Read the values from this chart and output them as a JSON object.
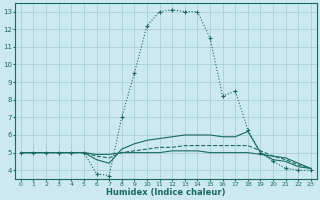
{
  "xlabel": "Humidex (Indice chaleur)",
  "xlim": [
    -0.5,
    23.5
  ],
  "ylim": [
    3.5,
    13.5
  ],
  "yticks": [
    4,
    5,
    6,
    7,
    8,
    9,
    10,
    11,
    12,
    13
  ],
  "xticks": [
    0,
    1,
    2,
    3,
    4,
    5,
    6,
    7,
    8,
    9,
    10,
    11,
    12,
    13,
    14,
    15,
    16,
    17,
    18,
    19,
    20,
    21,
    22,
    23
  ],
  "bg_color": "#cce8f0",
  "grid_color": "#aacfd8",
  "line_color": "#1a6b5e",
  "series": [
    {
      "x": [
        0,
        1,
        2,
        3,
        4,
        5,
        6,
        7,
        8,
        9,
        10,
        11,
        12,
        13,
        14,
        15,
        16,
        17,
        18,
        19,
        20,
        21,
        22,
        23
      ],
      "y": [
        5,
        5,
        5,
        5,
        5,
        5,
        3.8,
        3.7,
        7.0,
        9.5,
        12.2,
        13.0,
        13.1,
        13.0,
        13.0,
        11.5,
        8.2,
        8.5,
        6.3,
        5.0,
        4.5,
        4.1,
        4.0,
        4.0
      ],
      "style": ":",
      "marker": "+"
    },
    {
      "x": [
        0,
        1,
        2,
        3,
        4,
        5,
        6,
        7,
        8,
        9,
        10,
        11,
        12,
        13,
        14,
        15,
        16,
        17,
        18,
        19,
        20,
        21,
        22,
        23
      ],
      "y": [
        5,
        5,
        5,
        5,
        5,
        5,
        4.6,
        4.4,
        5.2,
        5.5,
        5.7,
        5.8,
        5.9,
        6.0,
        6.0,
        6.0,
        5.9,
        5.9,
        6.2,
        5.0,
        4.6,
        4.5,
        4.2,
        4.1
      ],
      "style": "-",
      "marker": null
    },
    {
      "x": [
        0,
        1,
        2,
        3,
        4,
        5,
        6,
        7,
        8,
        9,
        10,
        11,
        12,
        13,
        14,
        15,
        16,
        17,
        18,
        19,
        20,
        21,
        22,
        23
      ],
      "y": [
        5,
        5,
        5,
        5,
        5,
        5,
        4.8,
        4.7,
        5.0,
        5.1,
        5.2,
        5.3,
        5.3,
        5.4,
        5.4,
        5.4,
        5.4,
        5.4,
        5.4,
        5.1,
        4.8,
        4.6,
        4.3,
        4.1
      ],
      "style": "--",
      "marker": null
    },
    {
      "x": [
        0,
        1,
        2,
        3,
        4,
        5,
        6,
        7,
        8,
        9,
        10,
        11,
        12,
        13,
        14,
        15,
        16,
        17,
        18,
        19,
        20,
        21,
        22,
        23
      ],
      "y": [
        5,
        5,
        5,
        5,
        5,
        5,
        4.9,
        4.9,
        5.0,
        5.0,
        5.0,
        5.0,
        5.1,
        5.1,
        5.1,
        5.0,
        5.0,
        5.0,
        5.0,
        4.9,
        4.8,
        4.7,
        4.4,
        4.1
      ],
      "style": "-",
      "marker": null
    }
  ]
}
